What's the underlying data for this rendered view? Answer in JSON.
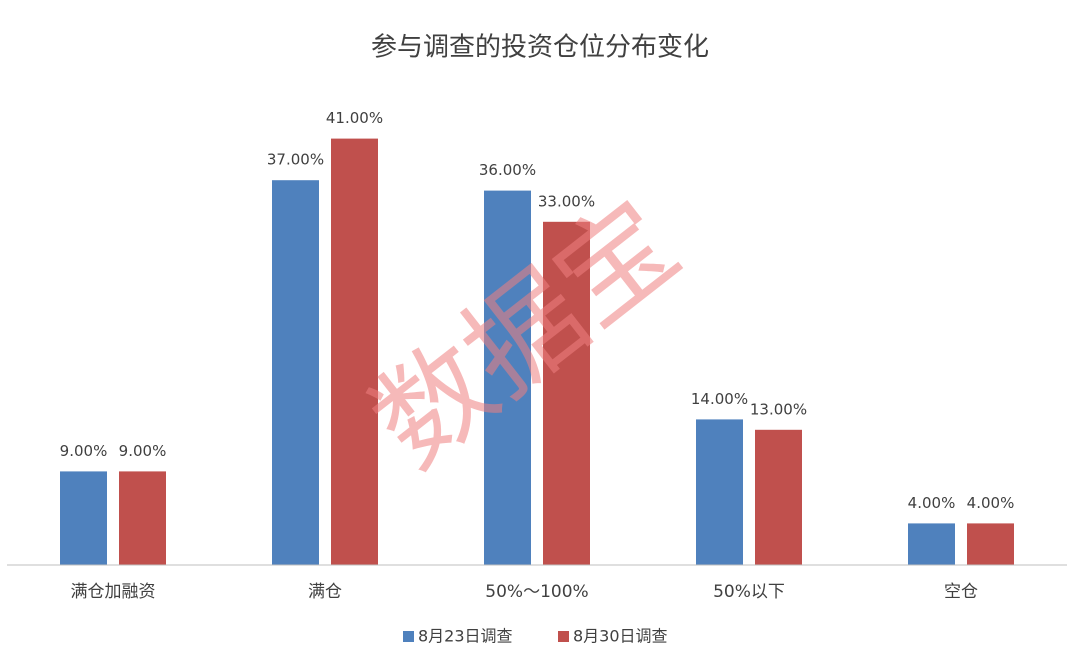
{
  "chart_data": {
    "type": "bar",
    "title": "参与调查的投资仓位分布变化",
    "categories": [
      "满仓加融资",
      "满仓",
      "50%～100%",
      "50%以下",
      "空仓"
    ],
    "series": [
      {
        "name": "8月23日调查",
        "color": "#4f81bd",
        "values": [
          9,
          37,
          36,
          14,
          4
        ],
        "value_labels": [
          "9.00%",
          "37.00%",
          "36.00%",
          "14.00%",
          "4.00%"
        ]
      },
      {
        "name": "8月30日调查",
        "color": "#c0504d",
        "values": [
          9,
          41,
          33,
          13,
          4
        ],
        "value_labels": [
          "9.00%",
          "41.00%",
          "33.00%",
          "13.00%",
          "4.00%"
        ]
      }
    ],
    "ylim": [
      0,
      45
    ],
    "legend": "bottom",
    "watermark": "数据宝"
  }
}
